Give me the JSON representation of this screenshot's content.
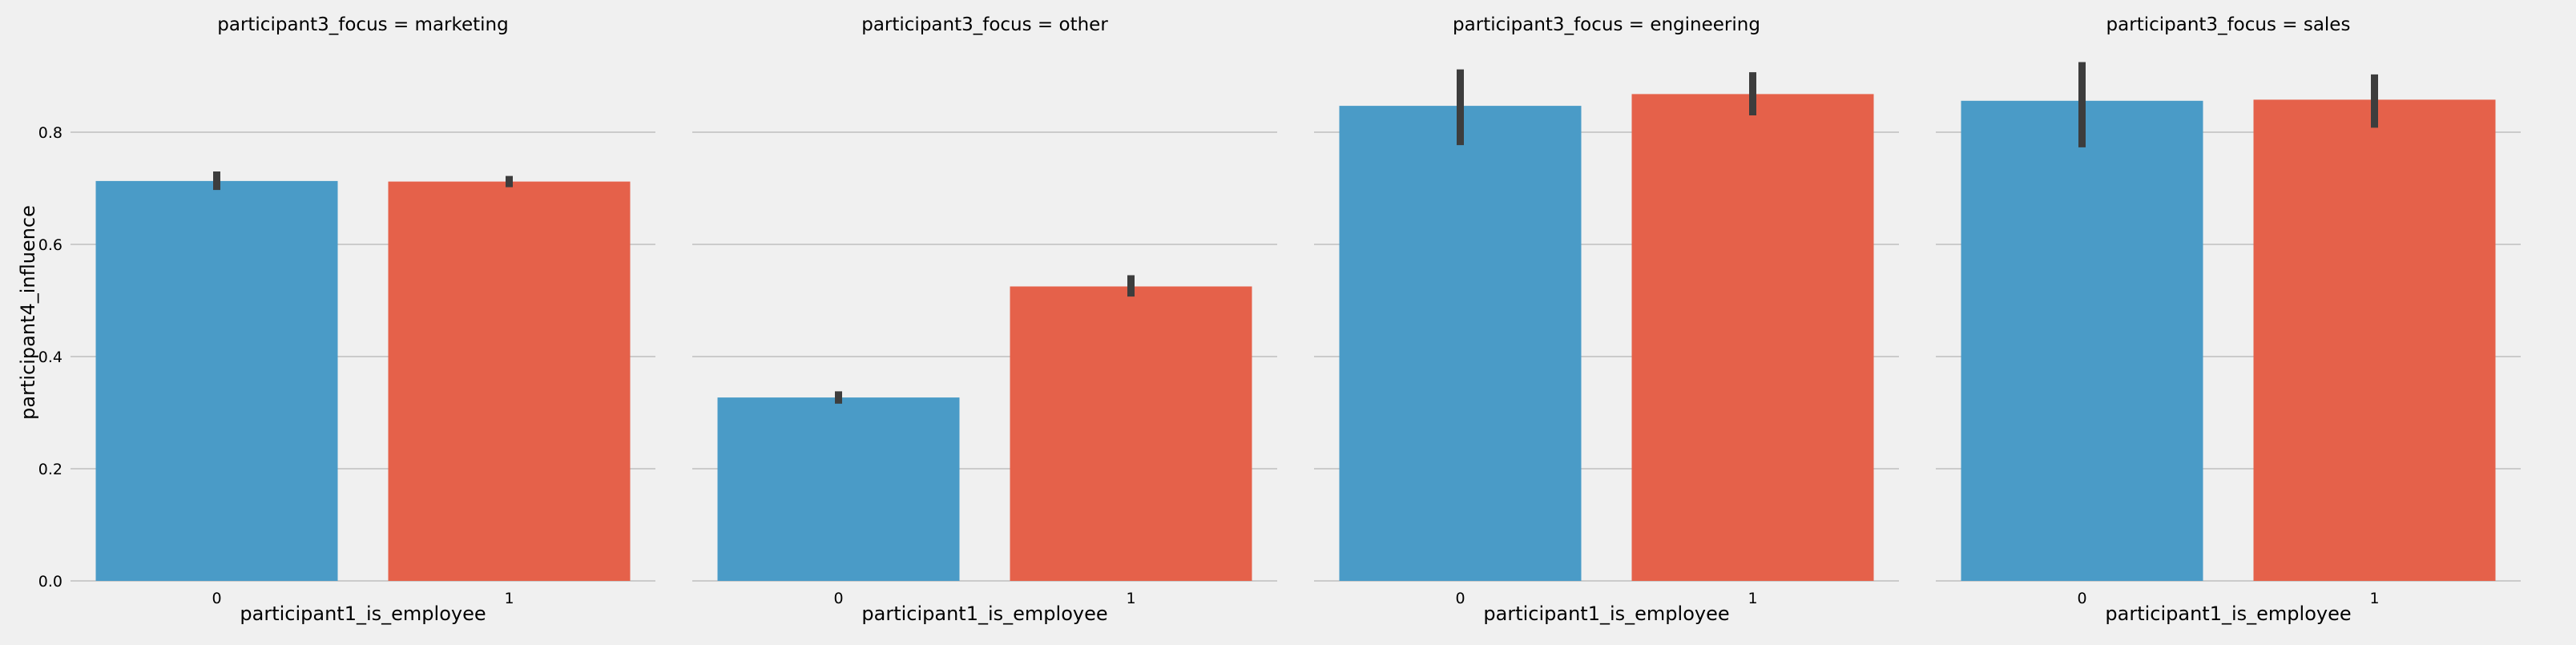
{
  "chart_data": {
    "type": "bar",
    "ylabel": "participant4_influence",
    "ylim": [
      0,
      0.95
    ],
    "yticks": [
      0.0,
      0.2,
      0.4,
      0.6,
      0.8
    ],
    "ytick_labels": [
      "0.0",
      "0.2",
      "0.4",
      "0.6",
      "0.8"
    ],
    "grid": true,
    "colors": [
      "#4a9bc7",
      "#e5614a"
    ],
    "error_bar_color": "#3d3d3d",
    "facets": [
      {
        "title": "participant3_focus = marketing",
        "xlabel": "participant1_is_employee",
        "categories": [
          "0",
          "1"
        ],
        "values": [
          0.713,
          0.712
        ],
        "ci_low": [
          0.697,
          0.702
        ],
        "ci_high": [
          0.73,
          0.722
        ]
      },
      {
        "title": "participant3_focus = other",
        "xlabel": "participant1_is_employee",
        "categories": [
          "0",
          "1"
        ],
        "values": [
          0.327,
          0.525
        ],
        "ci_low": [
          0.316,
          0.507
        ],
        "ci_high": [
          0.338,
          0.545
        ]
      },
      {
        "title": "participant3_focus = engineering",
        "xlabel": "participant1_is_employee",
        "categories": [
          "0",
          "1"
        ],
        "values": [
          0.847,
          0.868
        ],
        "ci_low": [
          0.777,
          0.83
        ],
        "ci_high": [
          0.912,
          0.907
        ]
      },
      {
        "title": "participant3_focus = sales",
        "xlabel": "participant1_is_employee",
        "categories": [
          "0",
          "1"
        ],
        "values": [
          0.856,
          0.858
        ],
        "ci_low": [
          0.773,
          0.808
        ],
        "ci_high": [
          0.925,
          0.903
        ]
      }
    ]
  }
}
